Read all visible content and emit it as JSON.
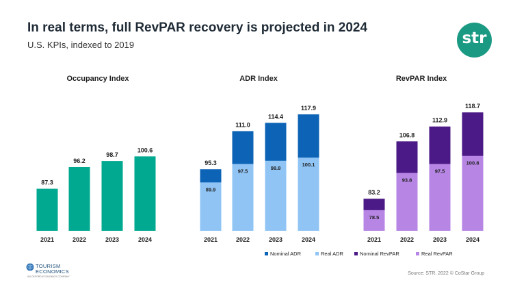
{
  "header": {
    "title": "In real terms, full RevPAR recovery is projected in 2024",
    "subtitle": "U.S. KPIs, indexed to 2019",
    "logo_text": "str"
  },
  "chart_data": [
    {
      "type": "bar",
      "title": "Occupancy Index",
      "categories": [
        "2021",
        "2022",
        "2023",
        "2024"
      ],
      "series": [
        {
          "name": "Occupancy Index",
          "values": [
            87.3,
            96.2,
            98.7,
            100.6
          ],
          "color": "#00a98f"
        }
      ],
      "ylim": [
        70,
        125
      ]
    },
    {
      "type": "bar",
      "title": "ADR Index",
      "categories": [
        "2021",
        "2022",
        "2023",
        "2024"
      ],
      "series": [
        {
          "name": "Nominal ADR",
          "values": [
            95.3,
            111.0,
            114.4,
            117.9
          ],
          "labels": [
            "95.3",
            "111.0",
            "114.4",
            "117.9"
          ],
          "color": "#0d63b5"
        },
        {
          "name": "Real ADR",
          "values": [
            89.9,
            97.5,
            98.8,
            100.1
          ],
          "labels": [
            "89.9",
            "97.5",
            "98.8",
            "100.1"
          ],
          "color": "#8fc4f5"
        }
      ],
      "ylim": [
        70,
        125
      ]
    },
    {
      "type": "bar",
      "title": "RevPAR Index",
      "categories": [
        "2021",
        "2022",
        "2023",
        "2024"
      ],
      "series": [
        {
          "name": "Nominal RevPAR",
          "values": [
            83.2,
            106.8,
            112.9,
            118.7
          ],
          "color": "#4b1a86"
        },
        {
          "name": "Real RevPAR",
          "values": [
            78.5,
            93.8,
            97.5,
            100.8
          ],
          "color": "#b786e4"
        }
      ],
      "ylim": [
        70,
        125
      ]
    }
  ],
  "legend": [
    {
      "label": "Nominal ADR",
      "color": "#0d63b5"
    },
    {
      "label": "Real ADR",
      "color": "#8fc4f5"
    },
    {
      "label": "Nominal RevPAR",
      "color": "#4b1a86"
    },
    {
      "label": "Real RevPAR",
      "color": "#b786e4"
    }
  ],
  "footer": {
    "brand_name_1": "TOURISM",
    "brand_name_2": "ECONOMICS",
    "brand_tagline": "AN OXFORD ECONOMICS COMPANY",
    "source": "Source: STR. 2022 © CoStar Group"
  }
}
